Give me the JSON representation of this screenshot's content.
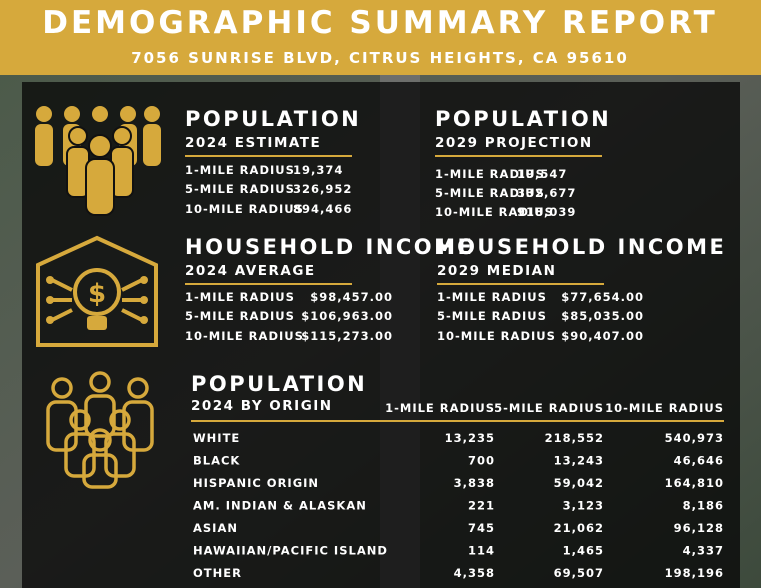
{
  "header": {
    "title": "DEMOGRAPHIC SUMMARY REPORT",
    "address": "7056 SUNRISE BLVD, CITRUS HEIGHTS, CA 95610"
  },
  "blocks": [
    {
      "title": "POPULATION",
      "subtitle": "2024 ESTIMATE",
      "rows": [
        [
          "1-MILE RADIUS",
          "19,374"
        ],
        [
          "5-MILE RADIUS",
          "326,952"
        ],
        [
          "10-MILE RADIUS",
          "894,466"
        ]
      ]
    },
    {
      "title": "POPULATION",
      "subtitle": "2029 PROJECTION",
      "rows": [
        [
          "1-MILE RADIUS",
          "19,547"
        ],
        [
          "5-MILE RADIUS",
          "332,677"
        ],
        [
          "10-MILE RADIUS",
          "918,039"
        ]
      ]
    },
    {
      "title": "HOUSEHOLD INCOME",
      "subtitle": "2024 AVERAGE",
      "rows": [
        [
          "1-MILE RADIUS",
          "$98,457.00"
        ],
        [
          "5-MILE RADIUS",
          "$106,963.00"
        ],
        [
          "10-MILE RADIUS",
          "$115,273.00"
        ]
      ]
    },
    {
      "title": "HOUSEHOLD INCOME",
      "subtitle": "2029 MEDIAN",
      "rows": [
        [
          "1-MILE RADIUS",
          "$77,654.00"
        ],
        [
          "5-MILE RADIUS",
          "$85,035.00"
        ],
        [
          "10-MILE RADIUS",
          "$90,407.00"
        ]
      ]
    }
  ],
  "origin": {
    "title": "POPULATION",
    "subtitle": "2024 BY ORIGIN",
    "columns": [
      "1-MILE RADIUS",
      "5-MILE RADIUS",
      "10-MILE RADIUS"
    ],
    "rows": [
      [
        "WHITE",
        "13,235",
        "218,552",
        "540,973"
      ],
      [
        "BLACK",
        "700",
        "13,243",
        "46,646"
      ],
      [
        "HISPANIC ORIGIN",
        "3,838",
        "59,042",
        "164,810"
      ],
      [
        "AM. INDIAN & ALASKAN",
        "221",
        "3,123",
        "8,186"
      ],
      [
        "ASIAN",
        "745",
        "21,062",
        "96,128"
      ],
      [
        "HAWAIIAN/PACIFIC ISLAND",
        "114",
        "1,465",
        "4,337"
      ],
      [
        "OTHER",
        "4,358",
        "69,507",
        "198,196"
      ]
    ]
  }
}
